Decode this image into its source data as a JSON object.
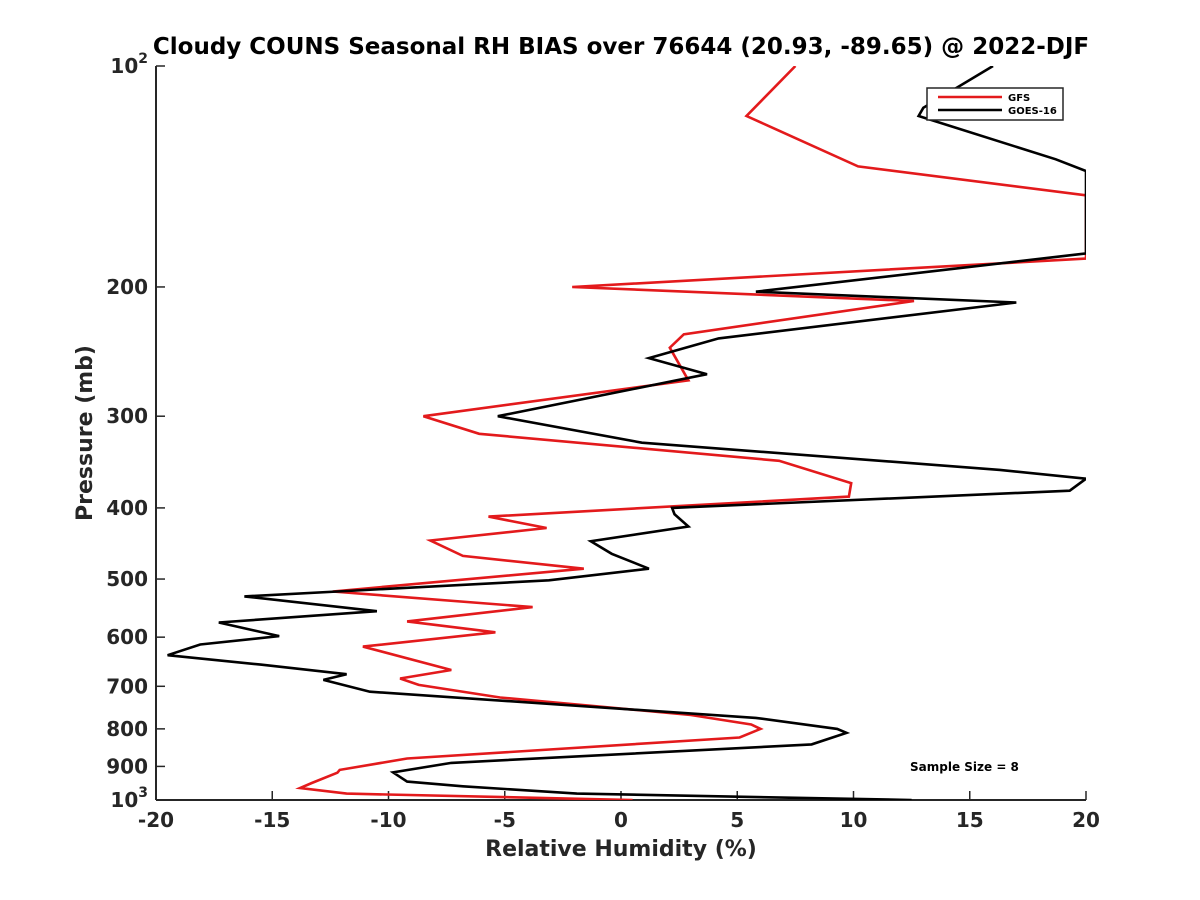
{
  "chart_data": {
    "type": "line",
    "title": "Cloudy COUNS Seasonal RH BIAS over 76644 (20.93, -89.65) @ 2022-DJF",
    "xlabel": "Relative Humidity (%)",
    "ylabel": "Pressure (mb)",
    "xlim": [
      -20,
      20
    ],
    "ylim": [
      100,
      1000
    ],
    "yscale": "log",
    "y_reversed": true,
    "xticks": [
      -20,
      -15,
      -10,
      -5,
      0,
      5,
      10,
      15,
      20
    ],
    "xtick_labels": [
      "-20",
      "-15",
      "-10",
      "-5",
      "0",
      "5",
      "10",
      "15",
      "20"
    ],
    "yticks": [
      {
        "value": 100,
        "base": "10",
        "exp": "2"
      },
      {
        "value": 200,
        "label": "200"
      },
      {
        "value": 300,
        "label": "300"
      },
      {
        "value": 400,
        "label": "400"
      },
      {
        "value": 500,
        "label": "500"
      },
      {
        "value": 600,
        "label": "600"
      },
      {
        "value": 700,
        "label": "700"
      },
      {
        "value": 800,
        "label": "800"
      },
      {
        "value": 900,
        "label": "900"
      },
      {
        "value": 1000,
        "base": "10",
        "exp": "3"
      }
    ],
    "legend_position": "top-right",
    "annotation": "Sample Size = 8",
    "series": [
      {
        "name": "GFS",
        "color": "#e31a1c",
        "points": [
          [
            7.5,
            100
          ],
          [
            5.4,
            117
          ],
          [
            10.2,
            137
          ],
          [
            20.0,
            150
          ],
          [
            20.0,
            150
          ],
          [
            20.0,
            183
          ],
          [
            -2.1,
            200
          ],
          [
            12.6,
            209
          ],
          [
            2.7,
            232
          ],
          [
            2.1,
            242
          ],
          [
            2.9,
            268
          ],
          [
            -8.5,
            300
          ],
          [
            -6.1,
            317
          ],
          [
            6.8,
            345
          ],
          [
            9.9,
            370
          ],
          [
            9.8,
            386
          ],
          [
            -5.7,
            411
          ],
          [
            -3.2,
            426
          ],
          [
            -8.2,
            443
          ],
          [
            -6.8,
            465
          ],
          [
            -1.6,
            484
          ],
          [
            -12.4,
            520
          ],
          [
            -3.8,
            546
          ],
          [
            -9.2,
            571
          ],
          [
            -5.4,
            591
          ],
          [
            -11.1,
            618
          ],
          [
            -7.3,
            665
          ],
          [
            -9.5,
            683
          ],
          [
            -8.7,
            697
          ],
          [
            -5.2,
            725
          ],
          [
            3.0,
            766
          ],
          [
            5.6,
            789
          ],
          [
            6.0,
            800
          ],
          [
            5.1,
            822
          ],
          [
            -9.2,
            878
          ],
          [
            -12.1,
            910
          ],
          [
            -12.2,
            918
          ],
          [
            -13.3,
            948
          ],
          [
            -13.8,
            963
          ],
          [
            -11.8,
            980
          ],
          [
            0.5,
            1000
          ]
        ]
      },
      {
        "name": "GOES-16",
        "color": "#000000",
        "points": [
          [
            16.0,
            100
          ],
          [
            13.0,
            114
          ],
          [
            12.8,
            117
          ],
          [
            18.7,
            134
          ],
          [
            20.0,
            139
          ],
          [
            20.0,
            180
          ],
          [
            5.8,
            203
          ],
          [
            17.0,
            210
          ],
          [
            4.2,
            235
          ],
          [
            1.2,
            250
          ],
          [
            3.7,
            263
          ],
          [
            -5.3,
            300
          ],
          [
            0.9,
            326
          ],
          [
            16.3,
            355
          ],
          [
            20.0,
            365
          ],
          [
            19.3,
            379
          ],
          [
            2.2,
            400
          ],
          [
            2.3,
            408
          ],
          [
            2.9,
            424
          ],
          [
            -1.3,
            444
          ],
          [
            -0.4,
            462
          ],
          [
            1.2,
            484
          ],
          [
            -3.1,
            502
          ],
          [
            -16.2,
            528
          ],
          [
            -10.5,
            553
          ],
          [
            -17.3,
            573
          ],
          [
            -14.7,
            598
          ],
          [
            -18.1,
            614
          ],
          [
            -19.5,
            635
          ],
          [
            -15.5,
            654
          ],
          [
            -11.8,
            674
          ],
          [
            -12.8,
            686
          ],
          [
            -10.8,
            712
          ],
          [
            5.8,
            773
          ],
          [
            9.3,
            800
          ],
          [
            9.7,
            810
          ],
          [
            8.2,
            840
          ],
          [
            -7.3,
            890
          ],
          [
            -9.8,
            917
          ],
          [
            -9.2,
            944
          ],
          [
            -6.8,
            958
          ],
          [
            -1.9,
            980
          ],
          [
            12.5,
            1000
          ]
        ]
      }
    ]
  }
}
